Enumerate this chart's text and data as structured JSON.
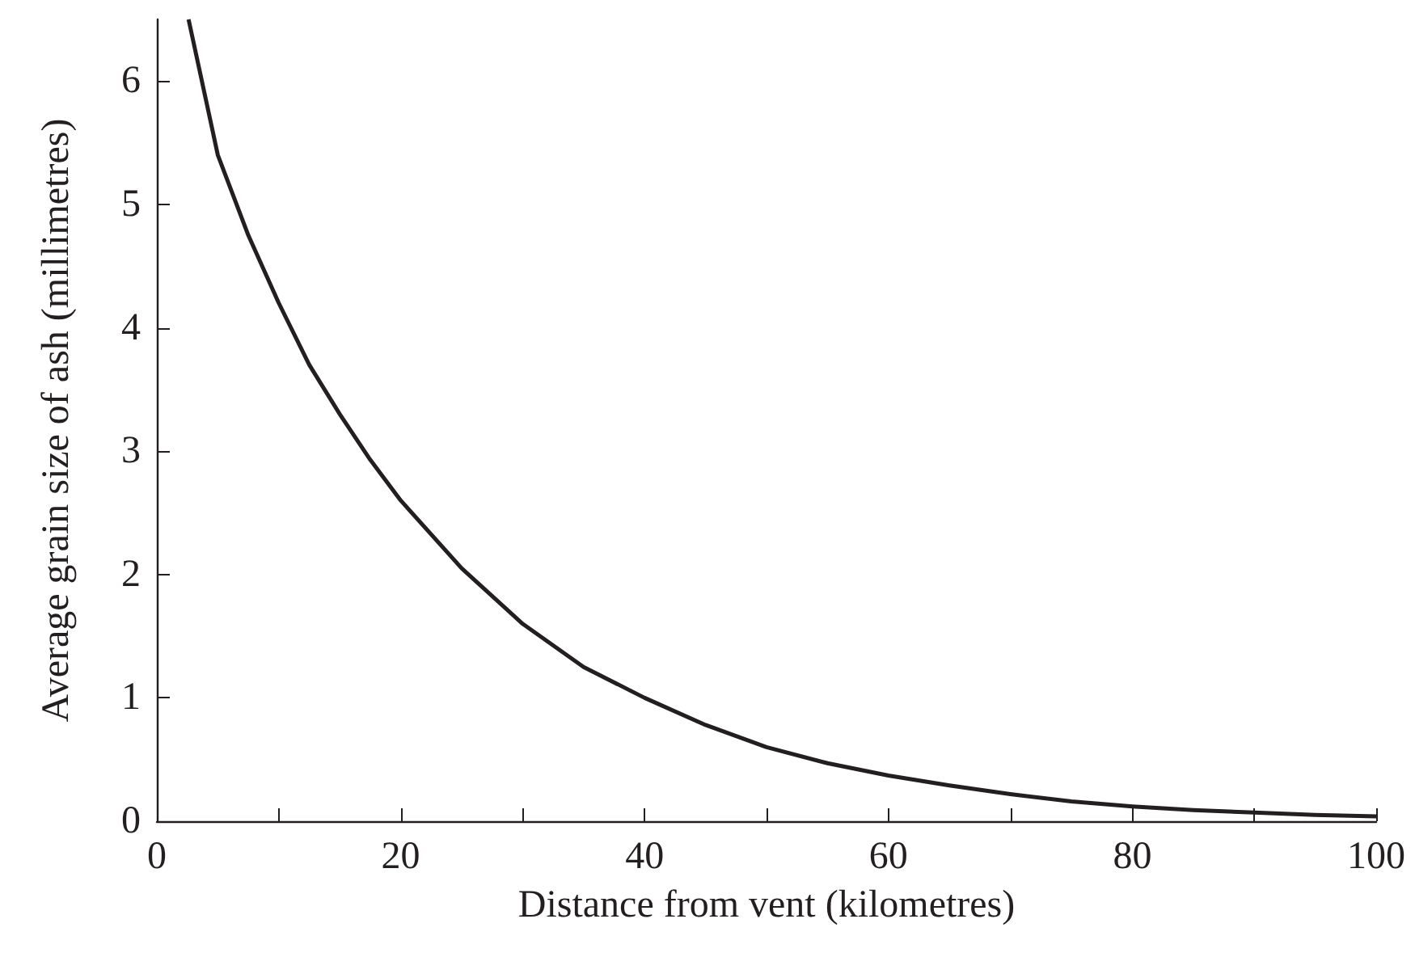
{
  "chart_data": {
    "type": "line",
    "xlabel": "Distance from vent (kilometres)",
    "ylabel": "Average grain size of ash (millimetres)",
    "xlim": [
      0,
      100
    ],
    "ylim": [
      0,
      6.5
    ],
    "xticks": [
      0,
      {
        "value": 10,
        "label": null
      },
      20,
      {
        "value": 30,
        "label": null
      },
      40,
      {
        "value": 50,
        "label": null
      },
      60,
      {
        "value": 70,
        "label": null
      },
      80,
      {
        "value": 90,
        "label": null
      },
      100
    ],
    "yticks": [
      0,
      1,
      2,
      3,
      4,
      5,
      6
    ],
    "marker": "none",
    "line_style": "solid",
    "series": [
      {
        "color": "#231f20",
        "x": [
          2.6,
          5,
          7.5,
          10,
          12.5,
          15,
          17.5,
          20,
          25,
          30,
          35,
          40,
          45,
          50,
          55,
          60,
          65,
          70,
          75,
          80,
          85,
          90,
          95,
          100
        ],
        "values": [
          6.5,
          5.4,
          4.75,
          4.2,
          3.7,
          3.3,
          2.93,
          2.6,
          2.05,
          1.6,
          1.25,
          1.0,
          0.78,
          0.6,
          0.47,
          0.37,
          0.29,
          0.22,
          0.16,
          0.12,
          0.09,
          0.07,
          0.05,
          0.04
        ]
      }
    ]
  }
}
